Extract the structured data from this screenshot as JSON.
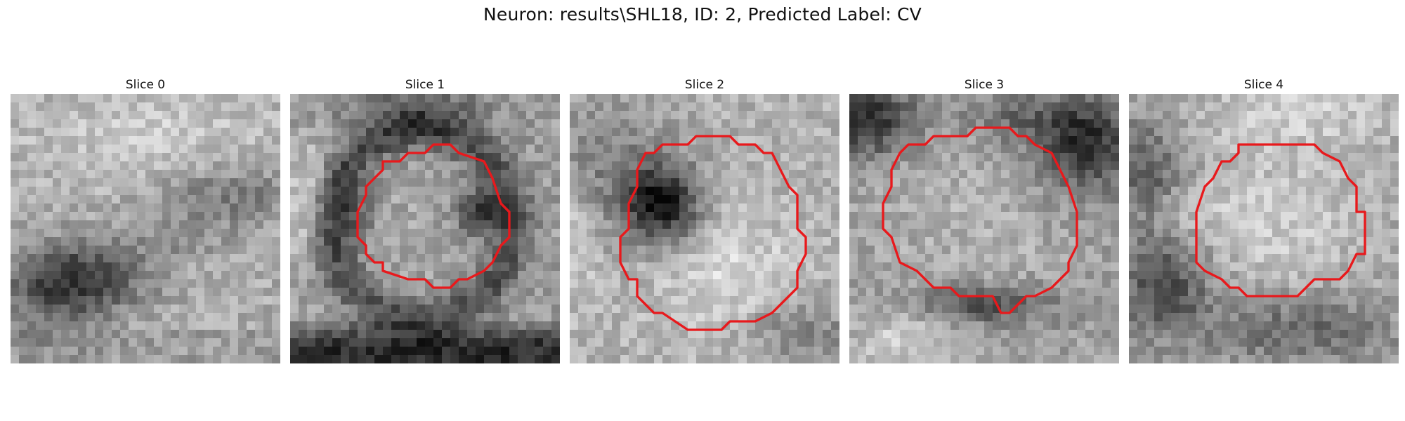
{
  "title": "Neuron: results\\SHL18, ID: 2, Predicted Label: CV",
  "overlay_color": "#e8191c",
  "panels": [
    {
      "label": "Slice 0"
    },
    {
      "label": "Slice 1"
    },
    {
      "label": "Slice 2"
    },
    {
      "label": "Slice 3"
    },
    {
      "label": "Slice 4"
    }
  ]
}
